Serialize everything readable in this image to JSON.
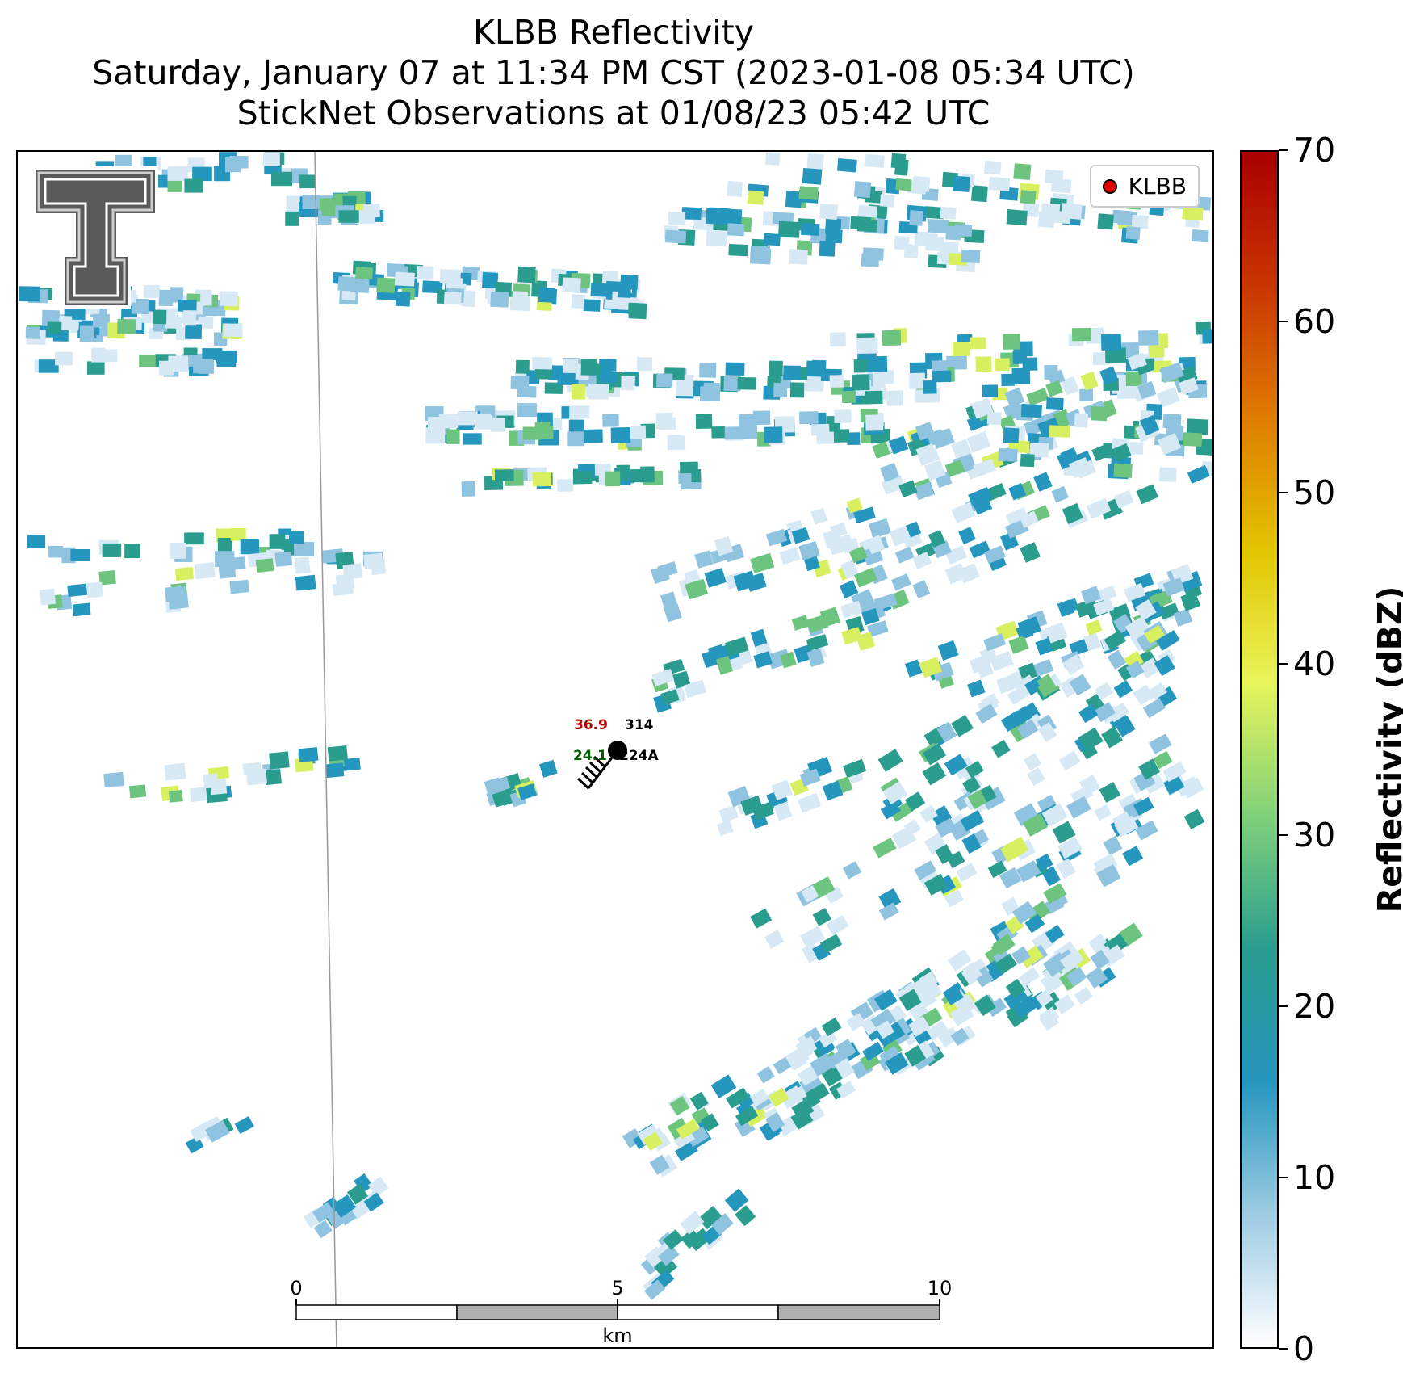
{
  "title": {
    "line1": "KLBB Reflectivity",
    "line2": "Saturday, January 07 at 11:34 PM CST (2023-01-08 05:34 UTC)",
    "line3": "StickNet Observations at 01/08/23 05:42 UTC"
  },
  "legend": {
    "label": "KLBB",
    "marker_color": "#e00000"
  },
  "station": {
    "temperature": "36.9",
    "temperature_color": "#b00000",
    "dewpoint": "24.1",
    "dewpoint_color": "#006000",
    "value": "314",
    "id": "224A"
  },
  "scalebar": {
    "labels": [
      "0",
      "5",
      "10"
    ],
    "unit": "km"
  },
  "colorbar": {
    "label": "Reflectivity (dBZ)",
    "ticks": [
      "0",
      "10",
      "20",
      "30",
      "40",
      "50",
      "60",
      "70"
    ],
    "min": 0,
    "max": 70,
    "stops": [
      "#ffffff",
      "#9ecbe3",
      "#2596be",
      "#2a9d8f",
      "#7fd07a",
      "#e8f55a",
      "#e2c400",
      "#e07b00",
      "#c93500",
      "#a80000"
    ]
  },
  "logo": {
    "name": "texas-tech-double-t-logo"
  }
}
